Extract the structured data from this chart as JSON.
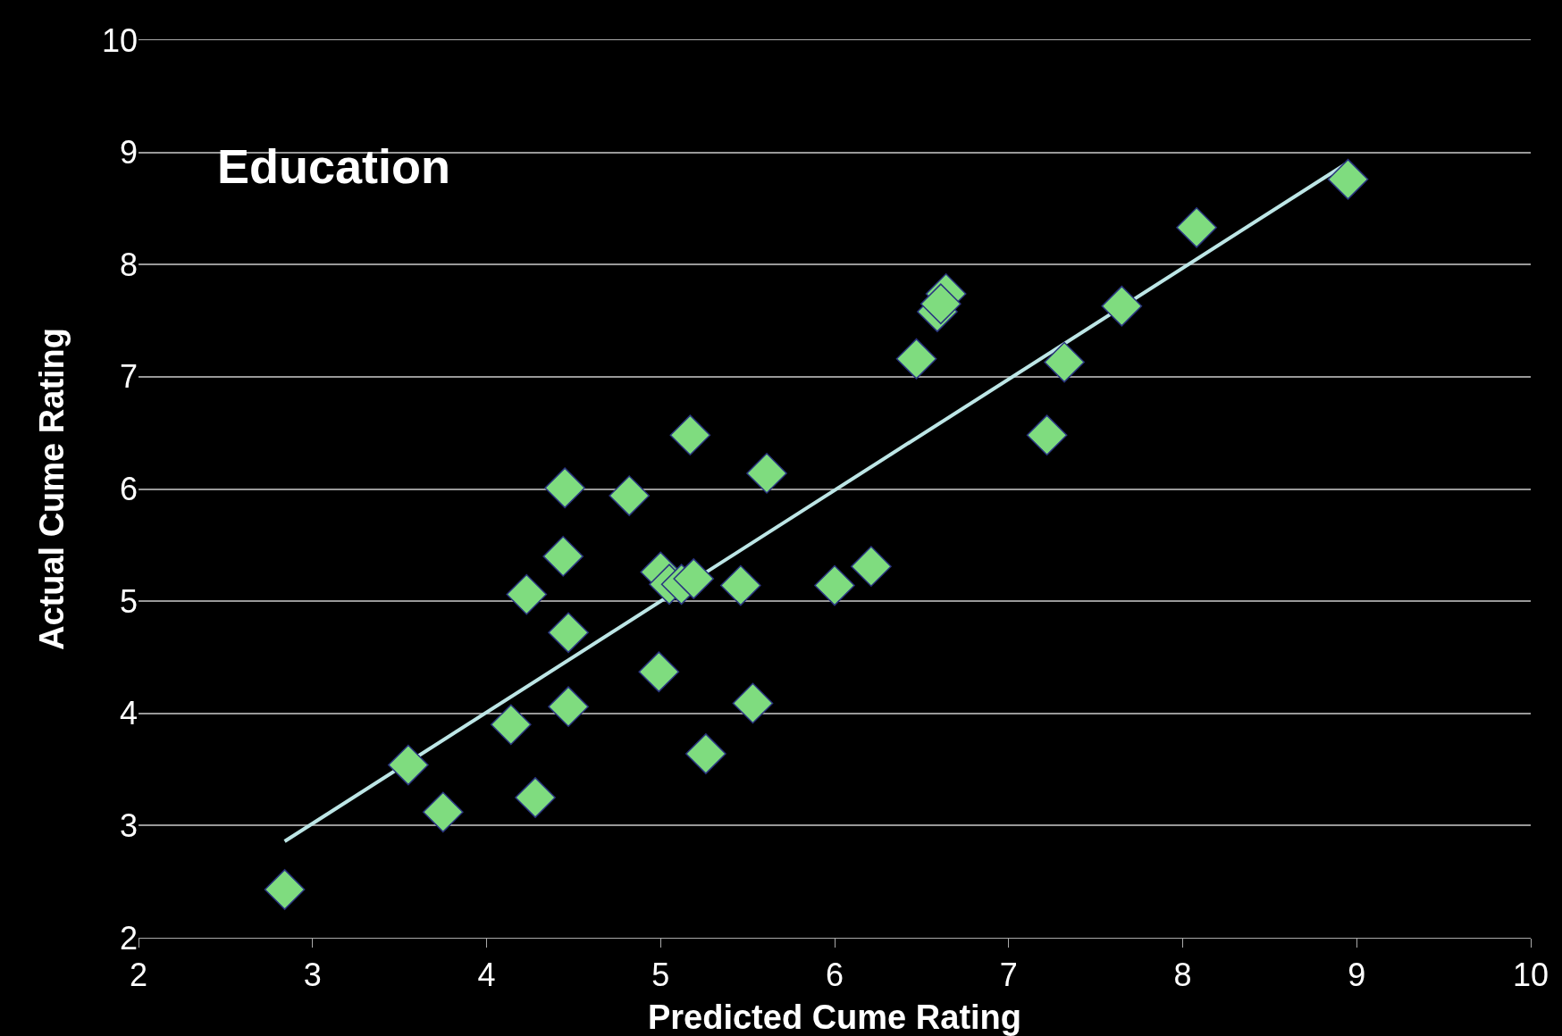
{
  "chart_data": {
    "type": "scatter",
    "xlabel": "Predicted Cume Rating",
    "ylabel": "Actual Cume Rating",
    "annotations": [
      "Education"
    ],
    "xlim": [
      2,
      10
    ],
    "ylim": [
      2,
      10
    ],
    "xticks": [
      2,
      3,
      4,
      5,
      6,
      7,
      8,
      9,
      10
    ],
    "yticks": [
      2,
      3,
      4,
      5,
      6,
      7,
      8,
      9,
      10
    ],
    "grid": "y",
    "marker": "diamond",
    "series": [
      {
        "type": "line",
        "color": "#bde6e6",
        "line_style": "solid",
        "marker": "none",
        "x": [
          2.84,
          8.94
        ],
        "values": [
          2.86,
          8.9
        ]
      },
      {
        "color": "#7fdc7f",
        "x": [
          2.84,
          3.55,
          3.75,
          4.14,
          4.28,
          4.23,
          4.44,
          4.45,
          4.47,
          4.47,
          4.82,
          4.99,
          5.0,
          5.05,
          5.12,
          5.19,
          5.17,
          5.26,
          5.46,
          5.53,
          5.61,
          6.0,
          6.21,
          6.47,
          6.59,
          6.64,
          6.61,
          7.22,
          7.32,
          7.65,
          8.08,
          8.95
        ],
        "values": [
          2.43,
          3.54,
          3.12,
          3.9,
          3.25,
          5.06,
          5.4,
          6.01,
          4.72,
          4.06,
          5.94,
          4.37,
          5.26,
          5.15,
          5.15,
          5.2,
          6.48,
          3.64,
          5.14,
          4.09,
          6.14,
          5.14,
          5.31,
          7.16,
          7.58,
          7.74,
          7.65,
          6.48,
          7.13,
          7.63,
          8.33,
          8.76
        ]
      }
    ]
  }
}
